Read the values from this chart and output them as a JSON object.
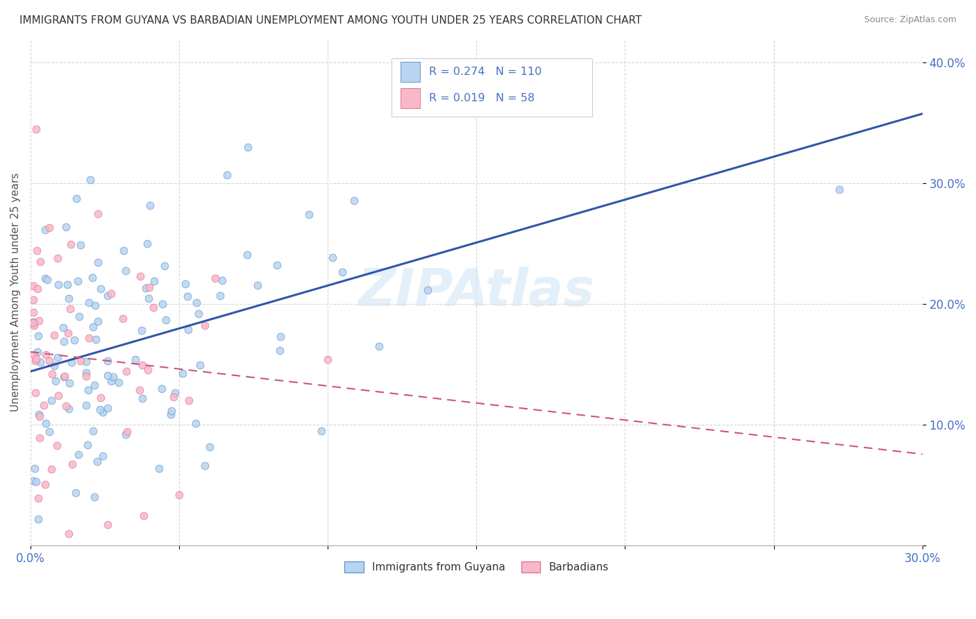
{
  "title": "IMMIGRANTS FROM GUYANA VS BARBADIAN UNEMPLOYMENT AMONG YOUTH UNDER 25 YEARS CORRELATION CHART",
  "source": "Source: ZipAtlas.com",
  "ylabel": "Unemployment Among Youth under 25 years",
  "xlim": [
    0.0,
    0.3
  ],
  "ylim": [
    0.0,
    0.42
  ],
  "blue_R": 0.274,
  "blue_N": 110,
  "pink_R": 0.019,
  "pink_N": 58,
  "blue_face": "#b8d4f0",
  "blue_edge": "#6699cc",
  "pink_face": "#f8b8c8",
  "pink_edge": "#dd7799",
  "trend_blue": "#3355aa",
  "trend_pink": "#cc5577",
  "legend1_label": "Immigrants from Guyana",
  "legend2_label": "Barbadians",
  "watermark": "ZIPAtlas",
  "background_color": "#ffffff",
  "grid_color": "#cccccc",
  "tick_color": "#4472c4",
  "title_color": "#333333",
  "source_color": "#888888",
  "ylabel_color": "#555555"
}
